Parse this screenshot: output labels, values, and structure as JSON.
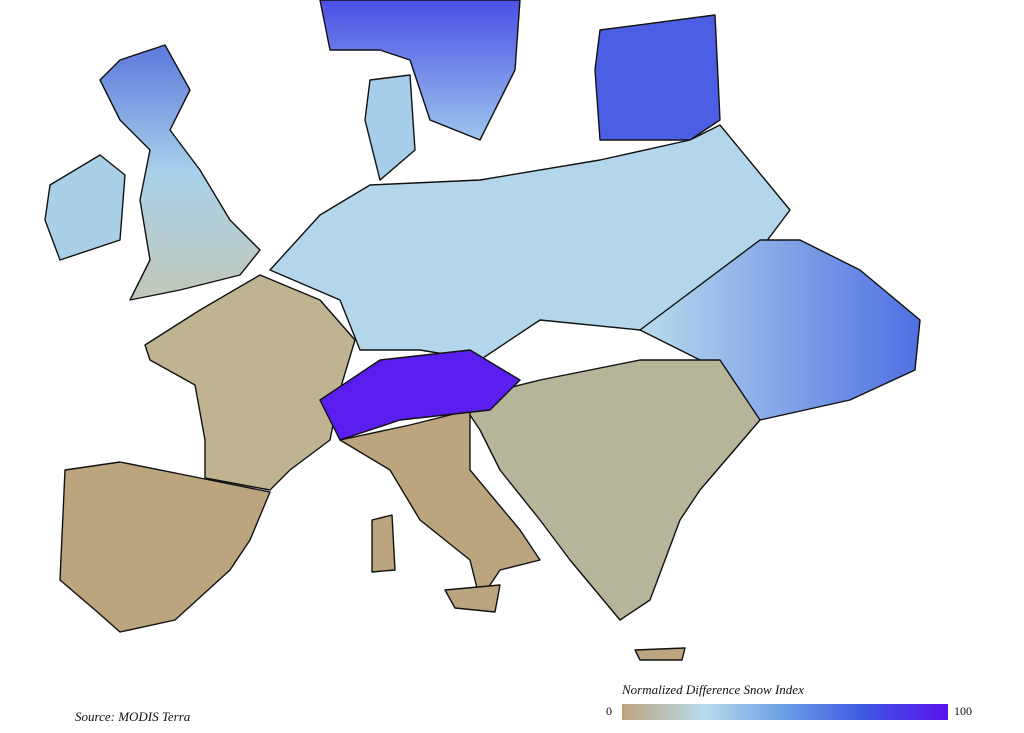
{
  "map": {
    "source": "Source: MODIS Terra"
  },
  "legend": {
    "title": "Normalized Difference Snow Index",
    "min": 0,
    "max": 100,
    "colors": [
      "#bba57f",
      "#b9dcec",
      "#6a9ee6",
      "#3f55e2",
      "#5a12f0"
    ]
  }
}
